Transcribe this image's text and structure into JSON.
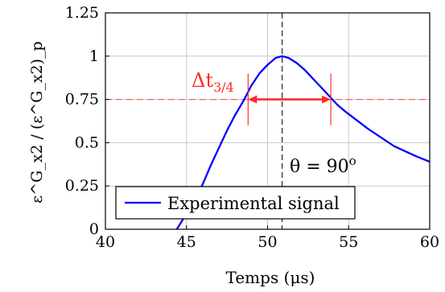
{
  "chart_data": {
    "type": "line",
    "xlabel": "Temps (μs)",
    "ylabel": "ε^G_x2 / (ε^G_x2)_p",
    "xlim": [
      40,
      60
    ],
    "ylim": [
      0,
      1.25
    ],
    "xticks": [
      40,
      45,
      50,
      55,
      60
    ],
    "yticks": [
      0,
      0.25,
      0.5,
      0.75,
      1,
      1.25
    ],
    "xtick_labels": [
      "40",
      "45",
      "50",
      "55",
      "60"
    ],
    "ytick_labels": [
      "0",
      "0.25",
      "0.5",
      "0.75",
      "1",
      "1.25"
    ],
    "grid": true,
    "legend_position": "bottom-left",
    "series": [
      {
        "name": "Experimental signal",
        "color": "#0000ff",
        "x": [
          44.4,
          45.0,
          45.5,
          46.0,
          46.5,
          47.0,
          47.5,
          48.0,
          48.5,
          49.0,
          49.5,
          50.0,
          50.5,
          50.9,
          51.3,
          51.8,
          52.3,
          52.8,
          53.3,
          53.8,
          54.3,
          54.8,
          55.5,
          56.2,
          57.0,
          57.8,
          58.5,
          59.2,
          60.0
        ],
        "y": [
          0.0,
          0.09,
          0.17,
          0.26,
          0.37,
          0.47,
          0.57,
          0.66,
          0.74,
          0.83,
          0.9,
          0.95,
          0.99,
          1.0,
          0.99,
          0.96,
          0.92,
          0.87,
          0.82,
          0.77,
          0.72,
          0.68,
          0.63,
          0.58,
          0.53,
          0.48,
          0.45,
          0.42,
          0.39
        ]
      }
    ],
    "reference_lines": {
      "horizontal_y": 0.75,
      "horizontal_color": "#ff6060",
      "vertical_x": 50.9,
      "vertical_color": "#000000"
    },
    "delta_annotation": {
      "x_start": 48.8,
      "x_end": 53.9,
      "y": 0.75,
      "label_main": "Δt",
      "label_sub": "3/4",
      "color": "#ff2a2a"
    },
    "angle_annotation": {
      "label_main": "θ = 90",
      "label_sup": "o"
    }
  }
}
